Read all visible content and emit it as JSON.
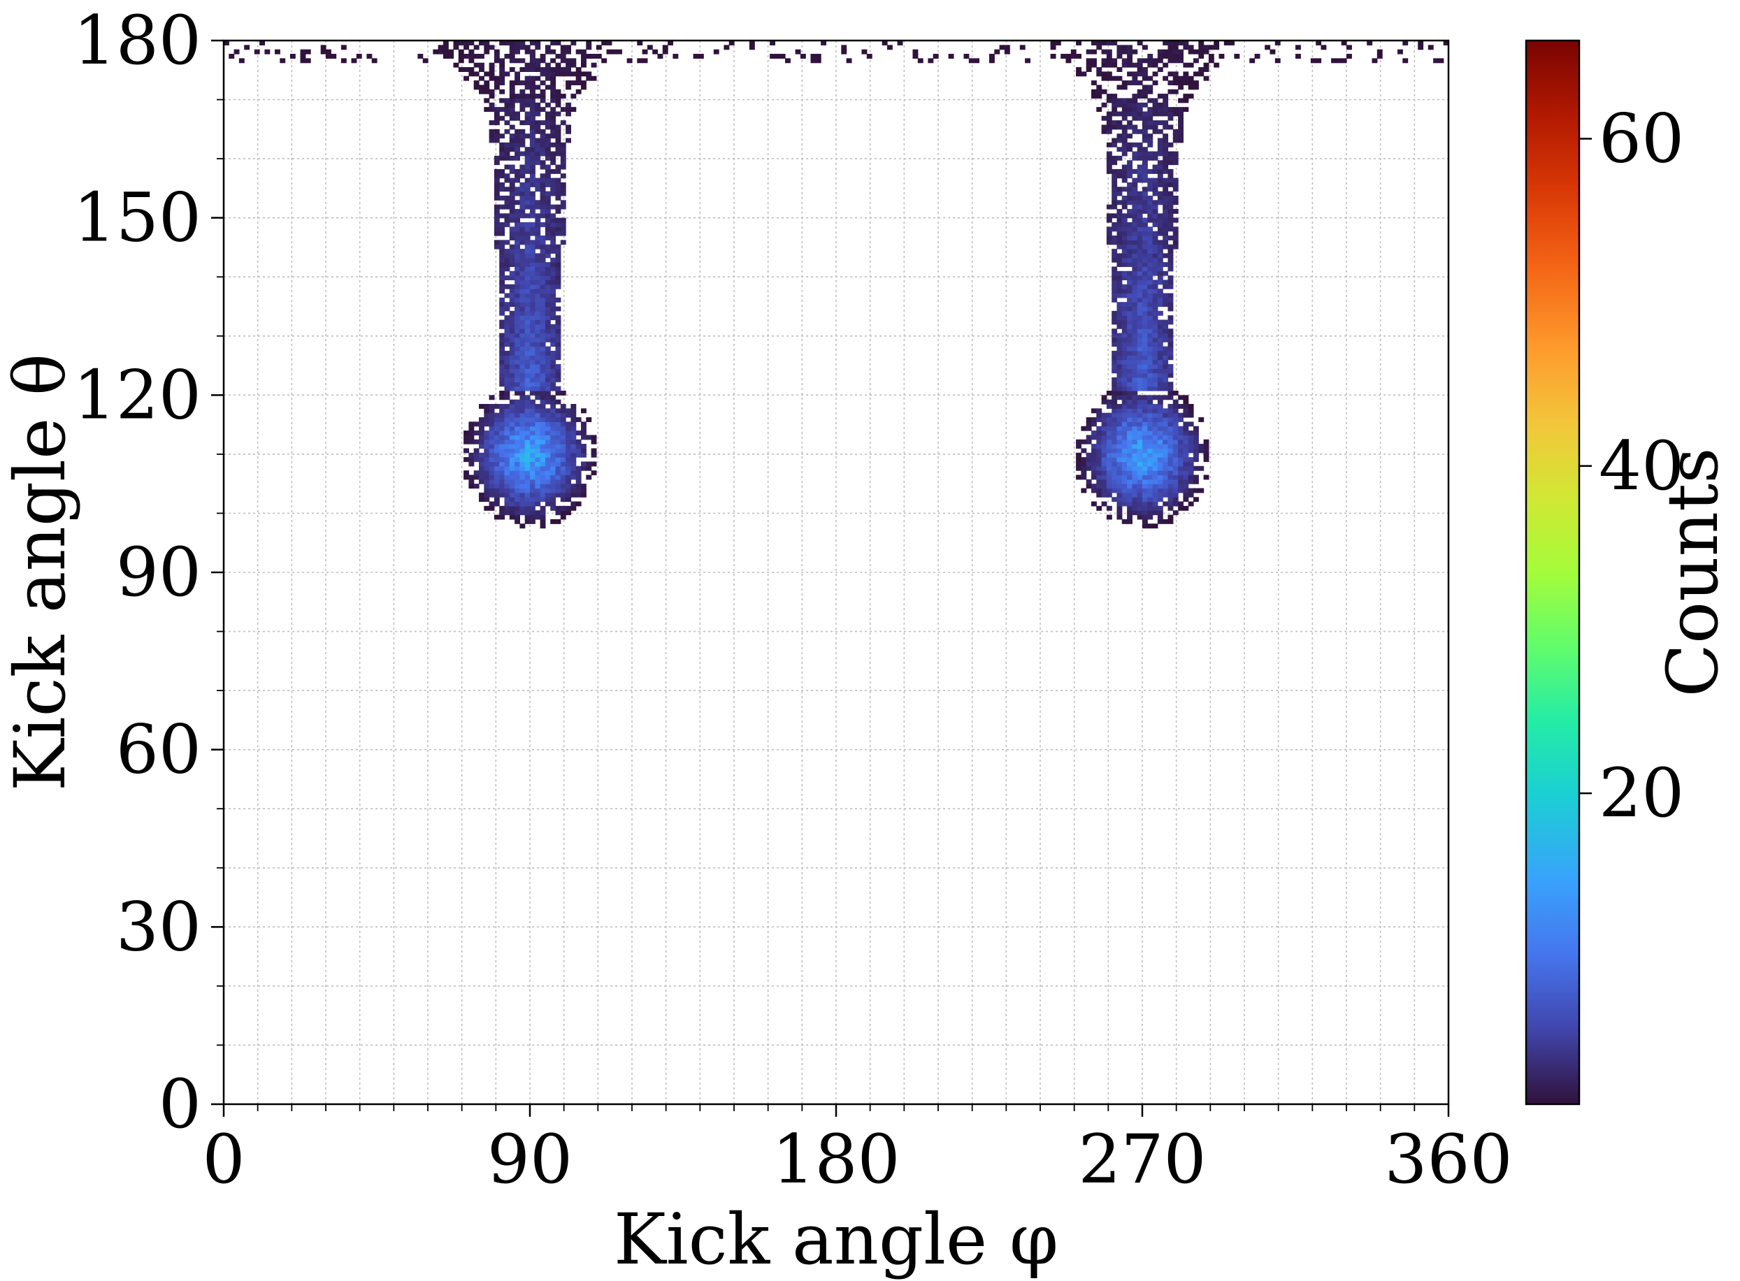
{
  "chart_data": {
    "type": "heatmap",
    "xlabel": "Kick angle φ",
    "ylabel": "Kick angle θ",
    "xlim": [
      0,
      360
    ],
    "ylim": [
      0,
      180
    ],
    "x_ticks": [
      0,
      90,
      180,
      270,
      360
    ],
    "y_ticks": [
      0,
      30,
      60,
      90,
      120,
      150,
      180
    ],
    "x_minor_step": 10,
    "y_minor_step": 10,
    "grid": true,
    "legend": "none",
    "colormap": "turbo",
    "colorbar": {
      "label": "Counts",
      "range": [
        1,
        66
      ],
      "ticks": [
        20,
        40,
        60
      ],
      "placement": "right"
    },
    "clusters": [
      {
        "phi_center": 90,
        "blob": {
          "theta_center": 110,
          "theta_extent": [
            96,
            121
          ],
          "phi_halfwidth": 20,
          "peak_count": 16
        },
        "stem": {
          "theta_extent": [
            121,
            170
          ],
          "phi_halfwidth": 9,
          "typical_count": 8
        },
        "flare": {
          "theta_extent": [
            170,
            180
          ],
          "phi_halfwidth": 28,
          "typical_count": 2
        }
      },
      {
        "phi_center": 270,
        "blob": {
          "theta_center": 110,
          "theta_extent": [
            96,
            121
          ],
          "phi_halfwidth": 20,
          "peak_count": 16
        },
        "stem": {
          "theta_extent": [
            121,
            170
          ],
          "phi_halfwidth": 9,
          "typical_count": 8
        },
        "flare": {
          "theta_extent": [
            170,
            180
          ],
          "phi_halfwidth": 28,
          "typical_count": 2
        }
      }
    ],
    "top_band": {
      "theta_extent": [
        176,
        180
      ],
      "phi_extent": [
        0,
        360
      ],
      "typical_count": 1
    }
  }
}
